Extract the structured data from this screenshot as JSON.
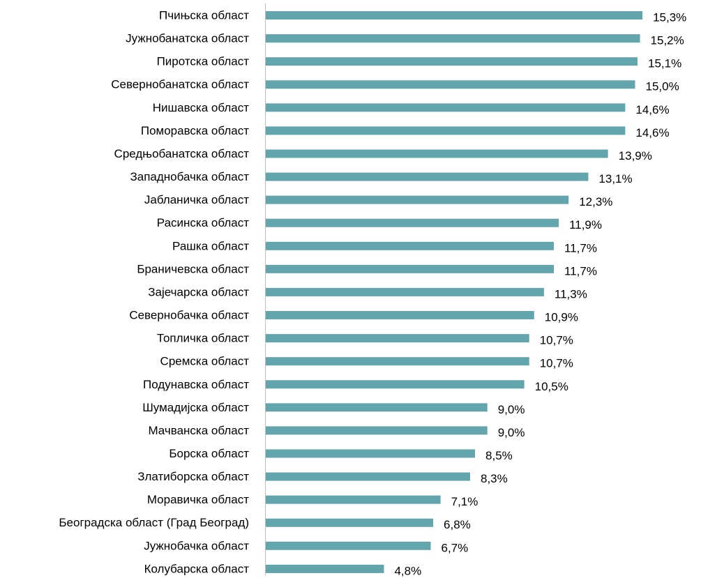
{
  "chart_data": {
    "type": "bar",
    "orientation": "horizontal",
    "color": "#62a5ad",
    "categories": [
      "Пчињска област",
      "Јужнобанатска област",
      "Пиротска област",
      "Севернобанатска област",
      "Нишавска област",
      "Поморавска област",
      "Средњобанатска област",
      "Западнобачка област",
      "Јабланичка област",
      "Расинска област",
      "Рашка област",
      "Браничевска област",
      "Зајечарска област",
      "Севернобачка област",
      "Топличка област",
      "Сремска област",
      "Подунавска област",
      "Шумадијска област",
      "Мачванска област",
      "Борска област",
      "Златиборска област",
      "Моравичка област",
      "Београдска област (Град Београд)",
      "Јужнобачка област",
      "Колубарска област"
    ],
    "values": [
      15.3,
      15.2,
      15.1,
      15.0,
      14.6,
      14.6,
      13.9,
      13.1,
      12.3,
      11.9,
      11.7,
      11.7,
      11.3,
      10.9,
      10.7,
      10.7,
      10.5,
      9.0,
      9.0,
      8.5,
      8.3,
      7.1,
      6.8,
      6.7,
      4.8
    ],
    "value_labels": [
      "15,3%",
      "15,2%",
      "15,1%",
      "15,0%",
      "14,6%",
      "14,6%",
      "13,9%",
      "13,1%",
      "12,3%",
      "11,9%",
      "11,7%",
      "11,7%",
      "11,3%",
      "10,9%",
      "10,7%",
      "10,7%",
      "10,5%",
      "9,0%",
      "9,0%",
      "8,5%",
      "8,3%",
      "7,1%",
      "6,8%",
      "6,7%",
      "4,8%"
    ]
  }
}
